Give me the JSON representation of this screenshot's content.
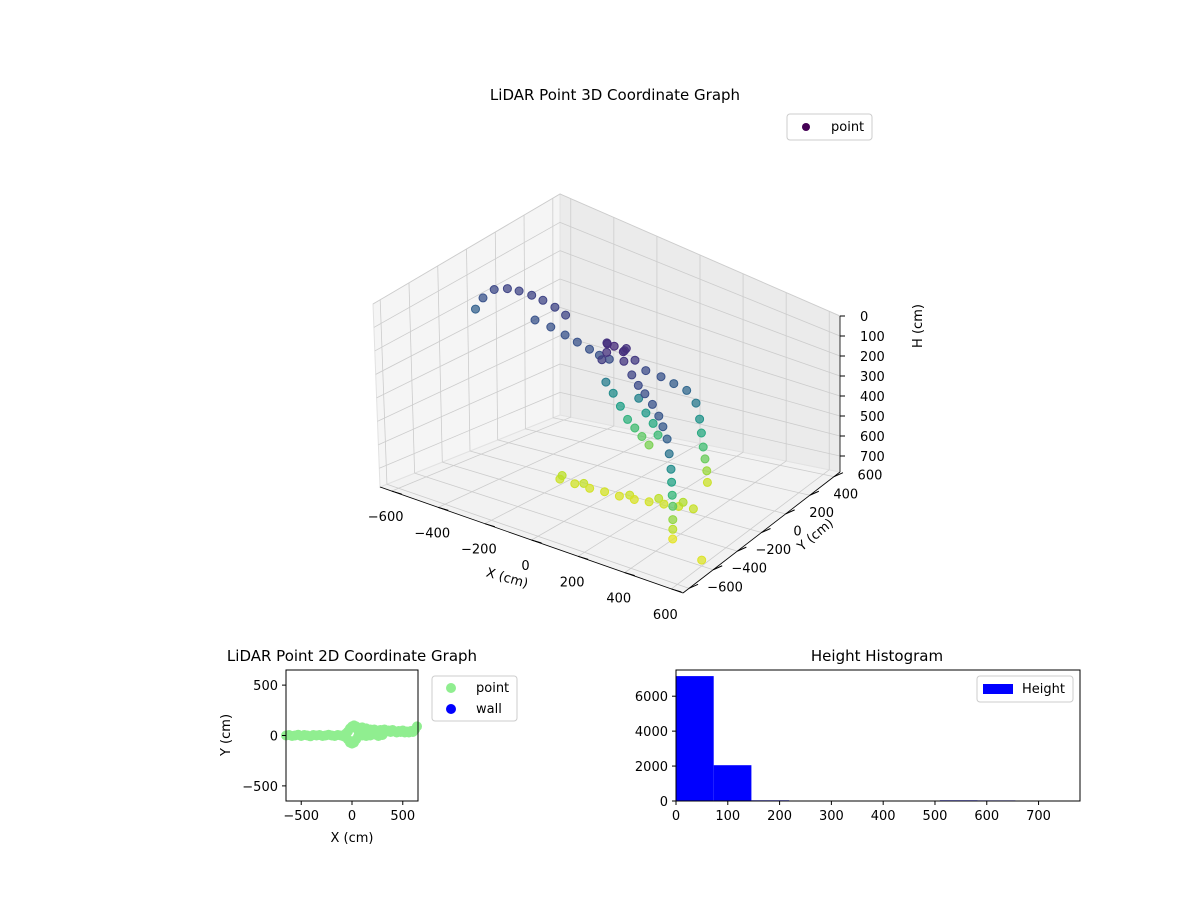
{
  "chart_data": [
    {
      "type": "scatter",
      "projection": "3d",
      "title": "LiDAR Point 3D Coordinate Graph",
      "xlabel": "X (cm)",
      "ylabel": "Y (cm)",
      "zlabel": "H (cm)",
      "xlim": [
        -650,
        650
      ],
      "ylim": [
        -650,
        650
      ],
      "zlim": [
        0,
        780
      ],
      "z_inverted": true,
      "x_ticks": [
        "−600",
        "−400",
        "−200",
        "0",
        "200",
        "400",
        "600"
      ],
      "y_ticks": [
        "−600",
        "−400",
        "−200",
        "0",
        "200",
        "400",
        "600"
      ],
      "z_ticks": [
        "0",
        "100",
        "200",
        "300",
        "400",
        "500",
        "600",
        "700"
      ],
      "colormap": "viridis",
      "grid": true,
      "legend": "top-right",
      "series": [
        {
          "name": "point",
          "color": "#440154",
          "points": [
            [
              -640,
              40,
              240
            ],
            [
              -625,
              70,
              200
            ],
            [
              -600,
              110,
              170
            ],
            [
              -560,
              140,
              160
            ],
            [
              -520,
              160,
              160
            ],
            [
              -470,
              170,
              160
            ],
            [
              -420,
              170,
              160
            ],
            [
              -360,
              160,
              160
            ],
            [
              -300,
              140,
              160
            ],
            [
              -400,
              80,
              200
            ],
            [
              -330,
              80,
              200
            ],
            [
              -260,
              70,
              200
            ],
            [
              -200,
              60,
              200
            ],
            [
              -140,
              50,
              200
            ],
            [
              -90,
              40,
              200
            ],
            [
              -40,
              30,
              190
            ],
            [
              -30,
              0,
              100
            ],
            [
              0,
              0,
              95
            ],
            [
              40,
              0,
              100
            ],
            [
              -10,
              -40,
              110
            ],
            [
              30,
              40,
              110
            ],
            [
              60,
              -30,
              120
            ],
            [
              -50,
              30,
              120
            ],
            [
              80,
              20,
              130
            ],
            [
              10,
              60,
              140
            ],
            [
              -20,
              -60,
              140
            ],
            [
              100,
              -40,
              160
            ],
            [
              140,
              -60,
              180
            ],
            [
              180,
              -80,
              190
            ],
            [
              230,
              -110,
              200
            ],
            [
              280,
              -150,
              210
            ],
            [
              320,
              -190,
              220
            ],
            [
              360,
              -230,
              240
            ],
            [
              380,
              -250,
              300
            ],
            [
              390,
              -255,
              380
            ],
            [
              395,
              -260,
              450
            ],
            [
              400,
              -265,
              520
            ],
            [
              405,
              -270,
              580
            ],
            [
              410,
              -280,
              650
            ],
            [
              415,
              -290,
              700
            ],
            [
              420,
              -300,
              750
            ],
            [
              110,
              50,
              180
            ],
            [
              160,
              80,
              200
            ],
            [
              200,
              110,
              230
            ],
            [
              240,
              140,
              260
            ],
            [
              270,
              160,
              320
            ],
            [
              280,
              170,
              400
            ],
            [
              285,
              175,
              470
            ],
            [
              290,
              180,
              540
            ],
            [
              295,
              185,
              600
            ],
            [
              300,
              190,
              660
            ],
            [
              300,
              195,
              720
            ],
            [
              -80,
              70,
              330
            ],
            [
              -60,
              90,
              380
            ],
            [
              -40,
              110,
              440
            ],
            [
              -20,
              130,
              500
            ],
            [
              0,
              150,
              540
            ],
            [
              20,
              170,
              580
            ],
            [
              40,
              190,
              620
            ],
            [
              60,
              80,
              350
            ],
            [
              80,
              100,
              420
            ],
            [
              100,
              120,
              470
            ],
            [
              110,
              140,
              530
            ],
            [
              -160,
              -150,
              720
            ],
            [
              -100,
              -140,
              725
            ],
            [
              -40,
              -130,
              730
            ],
            [
              20,
              -120,
              730
            ],
            [
              80,
              -110,
              735
            ],
            [
              140,
              -100,
              735
            ],
            [
              200,
              -90,
              730
            ],
            [
              260,
              -80,
              725
            ],
            [
              320,
              -70,
              720
            ],
            [
              380,
              -60,
              715
            ],
            [
              -150,
              -150,
              700
            ],
            [
              -60,
              -140,
              710
            ],
            [
              120,
              -100,
              720
            ],
            [
              240,
              -85,
              700
            ],
            [
              340,
              -70,
              690
            ],
            [
              600,
              -400,
              740
            ]
          ]
        }
      ]
    },
    {
      "type": "scatter",
      "title": "LiDAR Point 2D Coordinate Graph",
      "xlabel": "X (cm)",
      "ylabel": "Y (cm)",
      "xlim": [
        -650,
        650
      ],
      "ylim": [
        -650,
        650
      ],
      "x_ticks": [
        "−500",
        "0",
        "500"
      ],
      "y_ticks": [
        "−500",
        "0",
        "500"
      ],
      "legend": "outside-right",
      "series": [
        {
          "name": "point",
          "color": "#90ee90",
          "points": [
            [
              -650,
              0
            ],
            [
              -620,
              5
            ],
            [
              -590,
              -5
            ],
            [
              -560,
              0
            ],
            [
              -530,
              8
            ],
            [
              -500,
              -5
            ],
            [
              -470,
              5
            ],
            [
              -440,
              0
            ],
            [
              -410,
              -8
            ],
            [
              -380,
              5
            ],
            [
              -350,
              0
            ],
            [
              -320,
              5
            ],
            [
              -290,
              -5
            ],
            [
              -260,
              0
            ],
            [
              -230,
              8
            ],
            [
              -200,
              0
            ],
            [
              -170,
              -5
            ],
            [
              -140,
              5
            ],
            [
              -110,
              0
            ],
            [
              -80,
              -10
            ],
            [
              -60,
              20
            ],
            [
              -40,
              40
            ],
            [
              -20,
              70
            ],
            [
              0,
              90
            ],
            [
              20,
              100
            ],
            [
              40,
              90
            ],
            [
              -40,
              -40
            ],
            [
              -20,
              -70
            ],
            [
              0,
              -80
            ],
            [
              20,
              -70
            ],
            [
              40,
              -40
            ],
            [
              60,
              50
            ],
            [
              80,
              70
            ],
            [
              100,
              80
            ],
            [
              120,
              60
            ],
            [
              140,
              70
            ],
            [
              160,
              50
            ],
            [
              180,
              60
            ],
            [
              200,
              40
            ],
            [
              220,
              60
            ],
            [
              240,
              50
            ],
            [
              260,
              40
            ],
            [
              280,
              55
            ],
            [
              300,
              45
            ],
            [
              320,
              60
            ],
            [
              340,
              40
            ],
            [
              360,
              50
            ],
            [
              380,
              35
            ],
            [
              400,
              55
            ],
            [
              420,
              40
            ],
            [
              440,
              30
            ],
            [
              460,
              45
            ],
            [
              480,
              35
            ],
            [
              500,
              50
            ],
            [
              520,
              30
            ],
            [
              540,
              40
            ],
            [
              560,
              30
            ],
            [
              580,
              45
            ],
            [
              600,
              35
            ],
            [
              620,
              60
            ],
            [
              640,
              90
            ],
            [
              60,
              -10
            ],
            [
              100,
              0
            ],
            [
              140,
              -5
            ],
            [
              180,
              0
            ],
            [
              220,
              10
            ],
            [
              260,
              -5
            ],
            [
              300,
              5
            ]
          ]
        },
        {
          "name": "wall",
          "color": "#0000ff",
          "points": []
        }
      ]
    },
    {
      "type": "bar",
      "title": "Height Histogram",
      "xlabel": "",
      "ylabel": "",
      "xlim": [
        0,
        780
      ],
      "ylim": [
        0,
        7500
      ],
      "x_ticks": [
        "0",
        "100",
        "200",
        "300",
        "400",
        "500",
        "600",
        "700"
      ],
      "y_ticks": [
        "0",
        "2000",
        "4000",
        "6000"
      ],
      "legend": "top-right",
      "series": [
        {
          "name": "Height",
          "color": "#0000ff",
          "bins": [
            [
              0,
              72.8,
              7150
            ],
            [
              72.8,
              145.6,
              2050
            ],
            [
              145.6,
              218.4,
              40
            ],
            [
              218.4,
              291.2,
              30
            ],
            [
              291.2,
              364,
              30
            ],
            [
              364,
              436.8,
              30
            ],
            [
              436.8,
              509.6,
              0
            ],
            [
              509.6,
              582.4,
              40
            ],
            [
              582.4,
              655.2,
              35
            ],
            [
              655.2,
              728,
              0
            ]
          ]
        }
      ]
    }
  ]
}
